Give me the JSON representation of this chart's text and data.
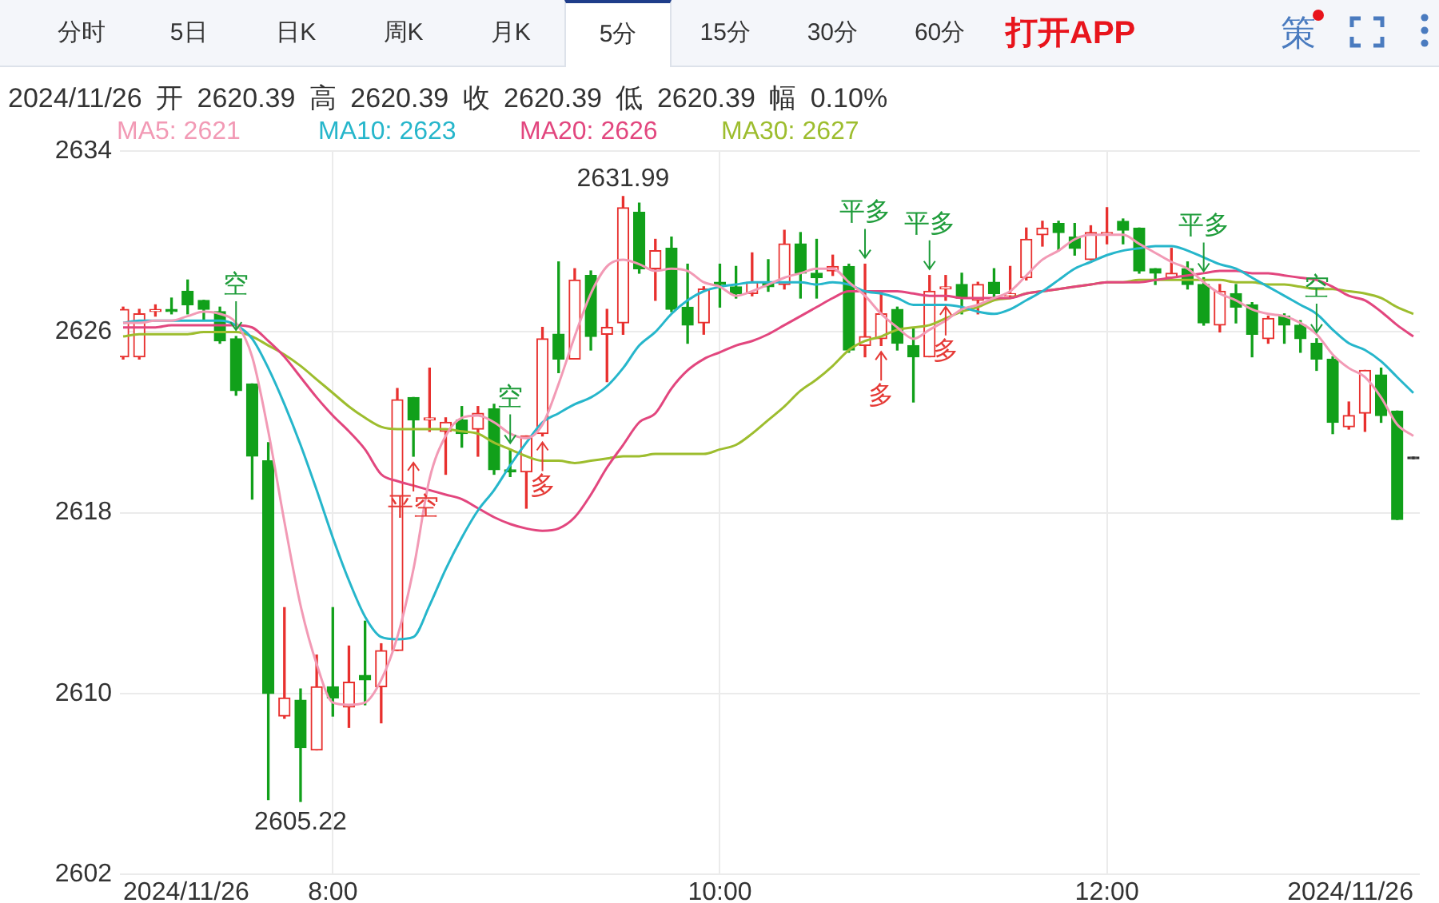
{
  "chart_data": {
    "type": "candlestick",
    "subtitle": "2024/11/26 开 2620.39 高 2620.39 收 2620.39 低 2620.39 幅 0.10%",
    "x": [
      "2024-11-26T06:55",
      "2024-11-26T07:00",
      "2024-11-26T07:05",
      "2024-11-26T07:10",
      "2024-11-26T07:15",
      "2024-11-26T07:20",
      "2024-11-26T07:25",
      "2024-11-26T07:30",
      "2024-11-26T07:35",
      "2024-11-26T07:40",
      "2024-11-26T07:45",
      "2024-11-26T07:50",
      "2024-11-26T07:55",
      "2024-11-26T08:00",
      "2024-11-26T08:05",
      "2024-11-26T08:10",
      "2024-11-26T08:15",
      "2024-11-26T08:20",
      "2024-11-26T08:25",
      "2024-11-26T08:30",
      "2024-11-26T08:35",
      "2024-11-26T08:40",
      "2024-11-26T08:45",
      "2024-11-26T08:50",
      "2024-11-26T08:55",
      "2024-11-26T09:00",
      "2024-11-26T09:05",
      "2024-11-26T09:10",
      "2024-11-26T09:15",
      "2024-11-26T09:20",
      "2024-11-26T09:25",
      "2024-11-26T09:30",
      "2024-11-26T09:35",
      "2024-11-26T09:40",
      "2024-11-26T09:45",
      "2024-11-26T09:50",
      "2024-11-26T09:55",
      "2024-11-26T10:00",
      "2024-11-26T10:05",
      "2024-11-26T10:10",
      "2024-11-26T10:15",
      "2024-11-26T10:20",
      "2024-11-26T10:25",
      "2024-11-26T10:30",
      "2024-11-26T10:35",
      "2024-11-26T10:40",
      "2024-11-26T10:45",
      "2024-11-26T10:50",
      "2024-11-26T10:55",
      "2024-11-26T11:00",
      "2024-11-26T11:05",
      "2024-11-26T11:10",
      "2024-11-26T11:15",
      "2024-11-26T11:20",
      "2024-11-26T11:25",
      "2024-11-26T11:30",
      "2024-11-26T11:35",
      "2024-11-26T11:40",
      "2024-11-26T11:45",
      "2024-11-26T11:50",
      "2024-11-26T11:55",
      "2024-11-26T12:00",
      "2024-11-26T12:05",
      "2024-11-26T12:10",
      "2024-11-26T12:15",
      "2024-11-26T12:20",
      "2024-11-26T12:25",
      "2024-11-26T12:30",
      "2024-11-26T12:35",
      "2024-11-26T12:40",
      "2024-11-26T12:45",
      "2024-11-26T12:50",
      "2024-11-26T12:55",
      "2024-11-26T13:00",
      "2024-11-26T13:05",
      "2024-11-26T13:10",
      "2024-11-26T13:15",
      "2024-11-26T13:20",
      "2024-11-26T13:25",
      "2024-11-26T13:30",
      "2024-11-26T13:35"
    ],
    "ohlc": [
      [
        2624.9,
        2627.1,
        2624.8,
        2627.0
      ],
      [
        2624.9,
        2627.0,
        2624.8,
        2626.8
      ],
      [
        2626.9,
        2627.2,
        2626.7,
        2627.0
      ],
      [
        2627.0,
        2627.5,
        2626.8,
        2626.9
      ],
      [
        2627.8,
        2628.3,
        2626.8,
        2627.2
      ],
      [
        2627.4,
        2627.4,
        2626.5,
        2627.0
      ],
      [
        2626.9,
        2627.1,
        2625.5,
        2625.6
      ],
      [
        2625.7,
        2625.8,
        2623.2,
        2623.4
      ],
      [
        2623.7,
        2623.7,
        2618.6,
        2620.5
      ],
      [
        2620.3,
        2621.1,
        2605.3,
        2610.0
      ],
      [
        2609.0,
        2613.8,
        2608.9,
        2609.8
      ],
      [
        2609.7,
        2610.2,
        2605.22,
        2607.6
      ],
      [
        2607.5,
        2611.7,
        2607.5,
        2610.3
      ],
      [
        2610.3,
        2613.8,
        2609.0,
        2609.8
      ],
      [
        2609.4,
        2612.1,
        2608.5,
        2610.5
      ],
      [
        2610.8,
        2613.2,
        2609.5,
        2610.6
      ],
      [
        2610.3,
        2612.2,
        2608.7,
        2611.9
      ],
      [
        2611.9,
        2623.5,
        2611.9,
        2623.0
      ],
      [
        2623.1,
        2623.1,
        2620.5,
        2622.1
      ],
      [
        2622.1,
        2624.4,
        2621.6,
        2622.2
      ],
      [
        2621.6,
        2622.2,
        2619.7,
        2622.0
      ],
      [
        2622.1,
        2622.7,
        2620.9,
        2621.5
      ],
      [
        2621.7,
        2622.7,
        2620.5,
        2622.4
      ],
      [
        2622.6,
        2622.8,
        2619.7,
        2619.9
      ],
      [
        2619.9,
        2620.8,
        2619.6,
        2619.8
      ],
      [
        2619.8,
        2621.4,
        2618.2,
        2621.4
      ],
      [
        2621.5,
        2626.2,
        2621.4,
        2625.7
      ],
      [
        2625.9,
        2629.1,
        2624.2,
        2624.8
      ],
      [
        2624.8,
        2628.8,
        2624.8,
        2628.3
      ],
      [
        2628.5,
        2628.7,
        2625.2,
        2625.8
      ],
      [
        2625.9,
        2627.0,
        2623.8,
        2626.2
      ],
      [
        2626.4,
        2631.99,
        2625.9,
        2631.5
      ],
      [
        2631.3,
        2631.7,
        2628.6,
        2628.8
      ],
      [
        2628.8,
        2630.1,
        2627.4,
        2629.6
      ],
      [
        2629.7,
        2630.2,
        2626.9,
        2627.0
      ],
      [
        2627.1,
        2629.0,
        2625.5,
        2626.3
      ],
      [
        2626.4,
        2628.0,
        2625.9,
        2627.9
      ],
      [
        2628.2,
        2629.0,
        2627.1,
        2628.1
      ],
      [
        2628.0,
        2628.9,
        2627.5,
        2627.7
      ],
      [
        2627.7,
        2629.5,
        2627.6,
        2628.2
      ],
      [
        2628.2,
        2629.2,
        2627.8,
        2628.0
      ],
      [
        2628.1,
        2630.5,
        2627.9,
        2629.9
      ],
      [
        2629.9,
        2630.4,
        2627.5,
        2628.6
      ],
      [
        2628.6,
        2630.1,
        2627.5,
        2628.4
      ],
      [
        2628.7,
        2629.4,
        2628.5,
        2628.9
      ],
      [
        2628.9,
        2629.0,
        2625.1,
        2625.2
      ],
      [
        2625.4,
        2629.0,
        2624.9,
        2625.8
      ],
      [
        2625.7,
        2627.8,
        2625.4,
        2626.8
      ],
      [
        2627.0,
        2627.1,
        2625.2,
        2625.5
      ],
      [
        2625.4,
        2626.2,
        2622.9,
        2624.9
      ],
      [
        2624.9,
        2628.5,
        2624.9,
        2627.8
      ],
      [
        2627.9,
        2628.5,
        2627.4,
        2628.0
      ],
      [
        2628.1,
        2628.6,
        2626.8,
        2627.5
      ],
      [
        2627.4,
        2628.2,
        2626.8,
        2628.1
      ],
      [
        2628.2,
        2628.8,
        2627.4,
        2627.7
      ],
      [
        2627.6,
        2628.9,
        2627.5,
        2627.7
      ],
      [
        2628.4,
        2630.6,
        2628.3,
        2630.1
      ],
      [
        2630.3,
        2630.9,
        2629.8,
        2630.6
      ],
      [
        2630.8,
        2630.9,
        2629.6,
        2630.4
      ],
      [
        2630.2,
        2630.8,
        2629.4,
        2629.7
      ],
      [
        2629.2,
        2630.7,
        2629.2,
        2630.4
      ],
      [
        2630.3,
        2631.5,
        2629.9,
        2630.4
      ],
      [
        2630.9,
        2631.0,
        2629.9,
        2630.5
      ],
      [
        2630.6,
        2630.6,
        2628.6,
        2628.7
      ],
      [
        2628.8,
        2628.8,
        2628.1,
        2628.6
      ],
      [
        2628.4,
        2629.7,
        2628.4,
        2628.6
      ],
      [
        2628.8,
        2629.1,
        2627.9,
        2628.1
      ],
      [
        2628.1,
        2628.4,
        2626.3,
        2626.4
      ],
      [
        2626.3,
        2628.1,
        2626.0,
        2627.8
      ],
      [
        2627.7,
        2628.1,
        2626.4,
        2627.1
      ],
      [
        2627.2,
        2627.3,
        2624.9,
        2625.9
      ],
      [
        2625.7,
        2626.7,
        2625.5,
        2626.6
      ],
      [
        2626.7,
        2626.8,
        2625.5,
        2626.3
      ],
      [
        2626.3,
        2626.5,
        2625.1,
        2625.7
      ],
      [
        2625.5,
        2625.7,
        2624.3,
        2624.8
      ],
      [
        2624.8,
        2624.9,
        2621.5,
        2622.0
      ],
      [
        2621.8,
        2622.9,
        2621.7,
        2622.3
      ],
      [
        2622.4,
        2624.3,
        2621.6,
        2624.3
      ],
      [
        2624.1,
        2624.4,
        2622.0,
        2622.3
      ],
      [
        2622.5,
        2622.5,
        2617.7,
        2617.7
      ],
      [
        2620.39,
        2620.39,
        2620.39,
        2620.39
      ]
    ],
    "colors": [
      "#e8302e",
      "#e8302e",
      "#e8302e",
      "#11a01a",
      "#11a01a",
      "#11a01a",
      "#11a01a",
      "#11a01a",
      "#11a01a",
      "#11a01a",
      "#e8302e",
      "#11a01a",
      "#e8302e",
      "#11a01a",
      "#e8302e",
      "#11a01a",
      "#e8302e",
      "#e8302e",
      "#11a01a",
      "#e8302e",
      "#e8302e",
      "#11a01a",
      "#e8302e",
      "#11a01a",
      "#11a01a",
      "#e8302e",
      "#e8302e",
      "#11a01a",
      "#e8302e",
      "#11a01a",
      "#e8302e",
      "#e8302e",
      "#11a01a",
      "#e8302e",
      "#11a01a",
      "#11a01a",
      "#e8302e",
      "#11a01a",
      "#11a01a",
      "#e8302e",
      "#11a01a",
      "#e8302e",
      "#11a01a",
      "#11a01a",
      "#e8302e",
      "#11a01a",
      "#e8302e",
      "#e8302e",
      "#11a01a",
      "#11a01a",
      "#e8302e",
      "#e8302e",
      "#11a01a",
      "#e8302e",
      "#11a01a",
      "#e8302e",
      "#e8302e",
      "#e8302e",
      "#11a01a",
      "#11a01a",
      "#e8302e",
      "#e8302e",
      "#11a01a",
      "#11a01a",
      "#11a01a",
      "#e8302e",
      "#11a01a",
      "#11a01a",
      "#e8302e",
      "#11a01a",
      "#11a01a",
      "#e8302e",
      "#11a01a",
      "#11a01a",
      "#11a01a",
      "#11a01a",
      "#e8302e",
      "#e8302e",
      "#11a01a",
      "#11a01a",
      "#333333"
    ],
    "series": [
      {
        "name": "MA5: 2621",
        "type": "line",
        "color": "#f29ab5",
        "values": [
          2626.4,
          2626.4,
          2626.5,
          2626.5,
          2626.7,
          2626.9,
          2626.8,
          2626.4,
          2624.9,
          2621.6,
          2617.6,
          2613.9,
          2611.3,
          2609.6,
          2609.5,
          2609.6,
          2610.6,
          2612.5,
          2615.5,
          2619.5,
          2621.4,
          2622.2,
          2622.3,
          2622.0,
          2621.5,
          2621.3,
          2621.9,
          2623.7,
          2625.8,
          2627.7,
          2628.9,
          2629.2,
          2629.0,
          2628.7,
          2628.8,
          2628.7,
          2628.2,
          2628.0,
          2627.6,
          2627.8,
          2628.1,
          2628.4,
          2628.6,
          2628.8,
          2628.8,
          2628.2,
          2627.6,
          2626.8,
          2626.2,
          2625.7,
          2626.1,
          2626.5,
          2627.0,
          2627.2,
          2627.5,
          2627.8,
          2628.5,
          2629.2,
          2629.6,
          2630.1,
          2630.3,
          2630.3,
          2630.3,
          2629.9,
          2629.5,
          2629.1,
          2628.8,
          2628.2,
          2627.7,
          2627.4,
          2627.0,
          2626.8,
          2626.7,
          2626.4,
          2625.9,
          2625.0,
          2624.4,
          2624.0,
          2623.1,
          2621.9,
          2621.4
        ]
      },
      {
        "name": "MA10: 2623",
        "type": "line",
        "color": "#26b6cb",
        "values": [
          2626.4,
          2626.5,
          2626.5,
          2626.5,
          2626.5,
          2626.5,
          2626.5,
          2626.3,
          2625.7,
          2624.4,
          2622.8,
          2621.0,
          2619.0,
          2616.9,
          2615.0,
          2613.4,
          2612.5,
          2612.4,
          2612.5,
          2613.9,
          2615.5,
          2616.9,
          2618.1,
          2619.0,
          2620.1,
          2621.1,
          2622.0,
          2622.4,
          2622.8,
          2623.1,
          2623.6,
          2624.4,
          2625.4,
          2626.0,
          2626.8,
          2627.4,
          2627.8,
          2628.0,
          2628.1,
          2628.2,
          2628.2,
          2628.2,
          2628.2,
          2628.1,
          2628.2,
          2628.1,
          2627.8,
          2627.7,
          2627.5,
          2627.2,
          2627.2,
          2627.2,
          2627.1,
          2626.9,
          2626.8,
          2627.0,
          2627.4,
          2627.8,
          2628.3,
          2628.8,
          2629.1,
          2629.4,
          2629.6,
          2629.7,
          2629.8,
          2629.8,
          2629.6,
          2629.3,
          2629.0,
          2628.8,
          2628.4,
          2628.0,
          2627.6,
          2627.2,
          2626.8,
          2626.1,
          2625.5,
          2625.2,
          2624.7,
          2624.0,
          2623.3
        ]
      },
      {
        "name": "MA20: 2626",
        "type": "line",
        "color": "#e2467e",
        "values": [
          2626.2,
          2626.2,
          2626.2,
          2626.3,
          2626.3,
          2626.3,
          2626.3,
          2626.3,
          2626.2,
          2625.6,
          2624.9,
          2624.0,
          2623.1,
          2622.3,
          2621.6,
          2620.8,
          2619.7,
          2619.4,
          2619.2,
          2619.0,
          2618.8,
          2618.6,
          2618.2,
          2617.8,
          2617.5,
          2617.3,
          2617.2,
          2617.3,
          2617.8,
          2618.8,
          2620.0,
          2621.0,
          2622.0,
          2622.4,
          2623.5,
          2624.3,
          2624.8,
          2625.1,
          2625.4,
          2625.6,
          2625.9,
          2626.3,
          2626.7,
          2627.1,
          2627.5,
          2627.8,
          2627.8,
          2627.8,
          2627.8,
          2627.7,
          2627.6,
          2627.6,
          2627.5,
          2627.5,
          2627.5,
          2627.5,
          2627.7,
          2627.8,
          2627.9,
          2628.0,
          2628.1,
          2628.2,
          2628.2,
          2628.2,
          2628.3,
          2628.4,
          2628.5,
          2628.6,
          2628.7,
          2628.7,
          2628.6,
          2628.6,
          2628.5,
          2628.4,
          2628.3,
          2628.0,
          2627.6,
          2627.4,
          2626.9,
          2626.3,
          2625.8
        ]
      },
      {
        "name": "MA30: 2627",
        "type": "line",
        "color": "#9dbd2e",
        "values": [
          2625.8,
          2625.9,
          2625.9,
          2625.9,
          2625.9,
          2626.0,
          2626.0,
          2626.0,
          2625.8,
          2625.4,
          2625.0,
          2624.5,
          2623.9,
          2623.3,
          2622.7,
          2622.2,
          2621.8,
          2621.7,
          2621.7,
          2621.7,
          2621.7,
          2621.6,
          2621.5,
          2621.1,
          2620.8,
          2620.5,
          2620.3,
          2620.3,
          2620.2,
          2620.3,
          2620.4,
          2620.5,
          2620.5,
          2620.6,
          2620.6,
          2620.6,
          2620.6,
          2620.8,
          2621.0,
          2621.5,
          2622.1,
          2622.7,
          2623.4,
          2623.9,
          2624.5,
          2625.2,
          2625.6,
          2625.8,
          2626.1,
          2626.2,
          2626.3,
          2626.6,
          2626.9,
          2627.1,
          2627.4,
          2627.5,
          2627.7,
          2627.8,
          2627.9,
          2628.0,
          2628.1,
          2628.2,
          2628.2,
          2628.3,
          2628.3,
          2628.3,
          2628.3,
          2628.3,
          2628.3,
          2628.2,
          2628.2,
          2628.1,
          2628.1,
          2628.0,
          2627.9,
          2627.9,
          2627.8,
          2627.7,
          2627.5,
          2627.1,
          2626.8
        ]
      }
    ],
    "xlim": [
      "2024-11-26T06:54",
      "2024-11-26T13:37"
    ],
    "xticks": [
      {
        "value": "2024-11-26T06:55",
        "label": "2024/11/26"
      },
      {
        "value": "2024-11-26T08:00",
        "label": "8:00"
      },
      {
        "value": "2024-11-26T10:00",
        "label": "10:00"
      },
      {
        "value": "2024-11-26T12:00",
        "label": "12:00"
      },
      {
        "value": "2024-11-26T13:35",
        "label": "2024/11/26"
      }
    ],
    "ylim": [
      2602,
      2634
    ],
    "yticks": [
      2602,
      2610,
      2618,
      2626,
      2634
    ],
    "grid": true,
    "legend": "top left",
    "marker": "none",
    "line_style": "solid",
    "annotations": [
      "分时",
      "5日",
      "日K",
      "周K",
      "月K",
      "5分",
      "15分",
      "30分",
      "60分",
      "打开APP",
      "策",
      {
        "text": "空",
        "x": "2024-11-26T07:30",
        "y": 2625.8
      },
      {
        "text": "平空",
        "x": "2024-11-26T08:25",
        "y": 2620.5
      },
      {
        "text": "空",
        "x": "2024-11-26T08:55",
        "y": 2620.8
      },
      {
        "text": "多",
        "x": "2024-11-26T09:05",
        "y": 2621.4
      },
      {
        "text": "平多",
        "x": "2024-11-26T10:45",
        "y": 2629.0
      },
      {
        "text": "多",
        "x": "2024-11-26T10:50",
        "y": 2625.4
      },
      {
        "text": "平多",
        "x": "2024-11-26T11:05",
        "y": 2628.5
      },
      {
        "text": "多",
        "x": "2024-11-26T11:10",
        "y": 2627.4
      },
      {
        "text": "平多",
        "x": "2024-11-26T12:30",
        "y": 2628.4
      },
      {
        "text": "空",
        "x": "2024-11-26T13:05",
        "y": 2625.7
      },
      {
        "text": "2631.99",
        "x": "2024-11-26T09:30",
        "y": 2631.99
      },
      {
        "text": "2605.22",
        "x": "2024-11-26T07:50",
        "y": 2605.22
      }
    ]
  }
}
